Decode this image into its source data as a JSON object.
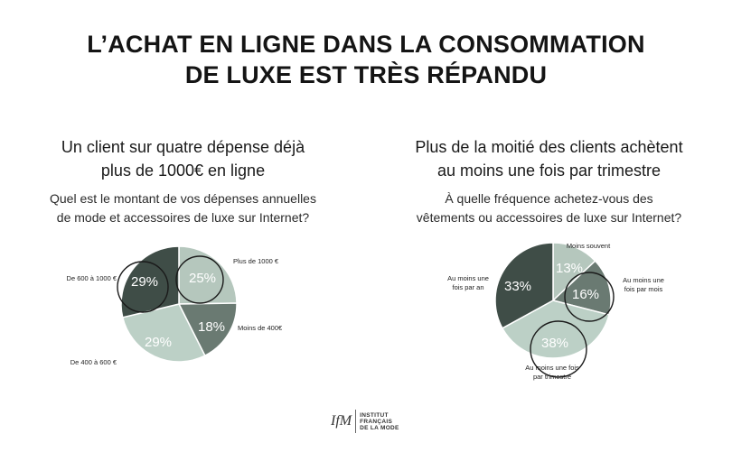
{
  "title_line1": "L’ACHAT EN LIGNE DANS LA CONSOMMATION",
  "title_line2": "DE LUXE EST TRÈS RÉPANDU",
  "chart_data": [
    {
      "type": "pie",
      "title_line1": "Un client sur quatre dépense déjà",
      "title_line2": "plus de 1000€ en ligne",
      "question_line1": "Quel est le montant de vos dépenses annuelles",
      "question_line2": "de mode et accessoires de luxe sur Internet?",
      "slices": [
        {
          "category": "Plus de 1000 €",
          "value": 25,
          "label": "25%",
          "color": "#b5c7bd",
          "highlight": true
        },
        {
          "category": "Moins de 400€",
          "value": 18,
          "label": "18%",
          "color": "#6a7a72",
          "highlight": false
        },
        {
          "category": "De 400 à 600 €",
          "value": 29,
          "label": "29%",
          "color": "#bcd0c6",
          "highlight": false
        },
        {
          "category": "De 600 à 1000 €",
          "value": 29,
          "label": "29%",
          "color": "#3f4d47",
          "highlight": true
        }
      ]
    },
    {
      "type": "pie",
      "title_line1": "Plus de la moitié des clients achètent",
      "title_line2": "au moins une fois par trimestre",
      "question_line1": "À quelle fréquence achetez-vous des",
      "question_line2": "vêtements ou accessoires de luxe sur Internet?",
      "slices": [
        {
          "category": "Moins souvent",
          "value": 13,
          "label": "13%",
          "color": "#b5c7bd",
          "highlight": false
        },
        {
          "category": "Au moins une fois par mois",
          "value": 16,
          "label": "16%",
          "color": "#6a7a72",
          "highlight": true
        },
        {
          "category": "Au moins une fois par trimestre",
          "value": 38,
          "label": "38%",
          "color": "#bcd0c6",
          "highlight": true
        },
        {
          "category": "Au moins une fois par an",
          "value": 33,
          "label": "33%",
          "color": "#3f4d47",
          "highlight": false
        }
      ]
    }
  ],
  "logo": {
    "mark": "IfM",
    "line1": "INSTITUT",
    "line2": "FRANÇAIS",
    "line3": "DE LA MODE"
  }
}
